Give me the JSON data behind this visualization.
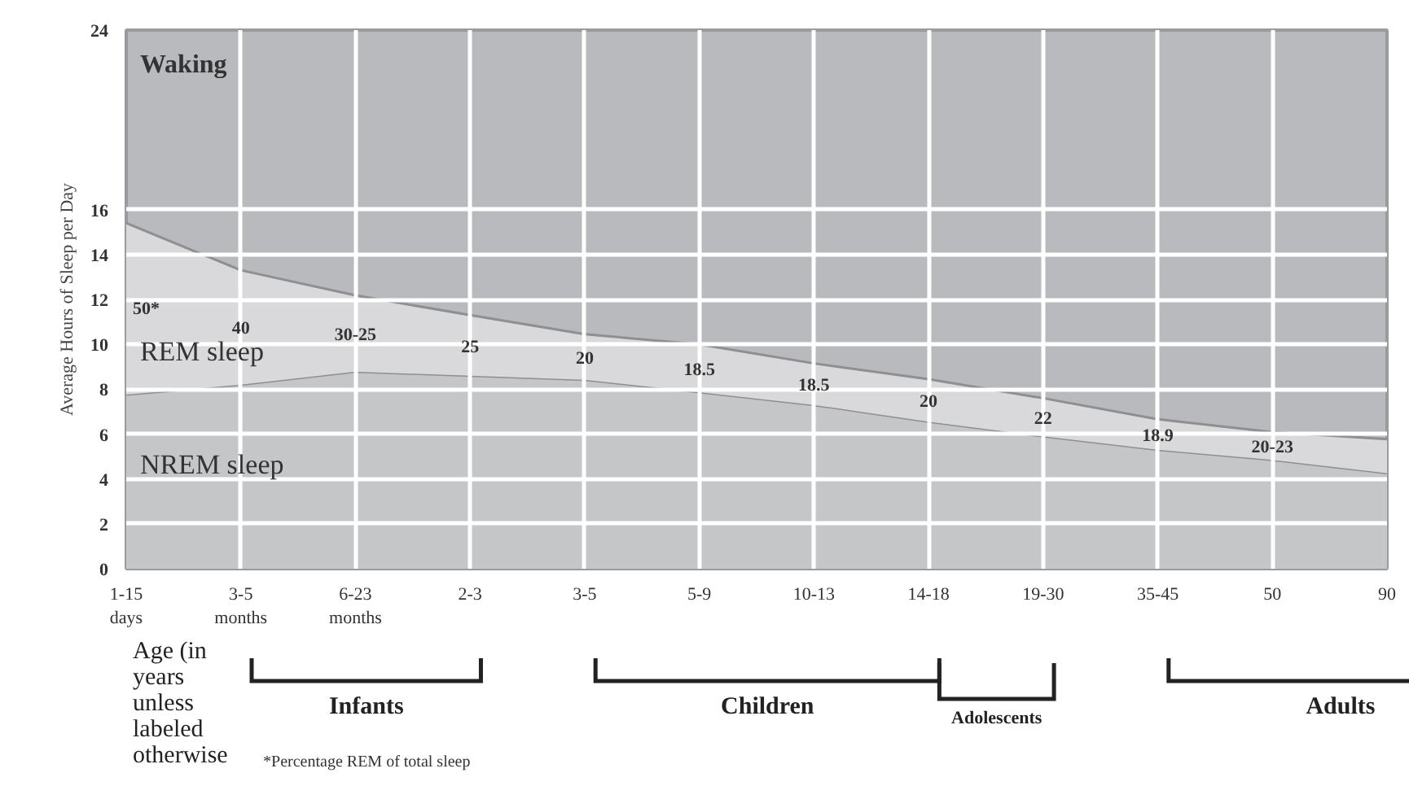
{
  "chart_data": {
    "type": "area",
    "stacked": true,
    "ylabel": "Average Hours of Sleep per Day",
    "xlabel": "Age (in years unless labeled otherwise",
    "categories": [
      "1-15 days",
      "3-5 months",
      "6-23 months",
      "2-3",
      "3-5",
      "5-9",
      "10-13",
      "14-18",
      "19-30",
      "35-45",
      "50",
      "90"
    ],
    "series": [
      {
        "name": "NREM sleep",
        "color": "#c5c6c8",
        "values": [
          7.76,
          8.2,
          8.78,
          8.6,
          8.42,
          7.87,
          7.3,
          6.55,
          5.9,
          5.3,
          4.85,
          4.26
        ]
      },
      {
        "name": "REM sleep",
        "color": "#d9d9db",
        "values": [
          7.64,
          5.1,
          3.4,
          2.7,
          2.03,
          2.13,
          1.85,
          1.9,
          1.7,
          1.36,
          1.24,
          1.51
        ]
      }
    ],
    "ylim": [
      0,
      24
    ],
    "yticks": [
      0,
      2,
      4,
      6,
      8,
      10,
      12,
      14,
      16,
      24
    ],
    "grid": true,
    "annotations": [
      "Waking",
      "Infants",
      "Children",
      "Adolescents",
      "Adults",
      "50*",
      "40",
      "30-25",
      "25",
      "20",
      "18.5",
      "18.5",
      "20",
      "22",
      "18.9",
      "20-23",
      "*Percentage REM of total sleep"
    ]
  }
}
